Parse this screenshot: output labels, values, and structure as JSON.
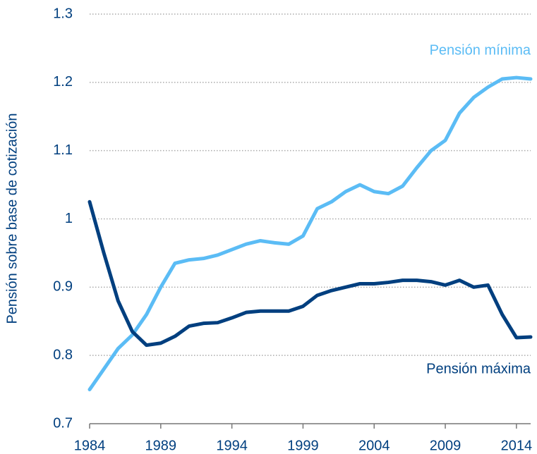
{
  "chart_data": {
    "type": "line",
    "y_label": "Pensión sobre base de cotización",
    "x": [
      1984,
      1985,
      1986,
      1987,
      1988,
      1989,
      1990,
      1991,
      1992,
      1993,
      1994,
      1995,
      1996,
      1997,
      1998,
      1999,
      2000,
      2001,
      2002,
      2003,
      2004,
      2005,
      2006,
      2007,
      2008,
      2009,
      2010,
      2011,
      2012,
      2013,
      2014,
      2015
    ],
    "series": [
      {
        "name": "Pensión mínima",
        "color": "#5bbcf5",
        "values": [
          0.75,
          0.78,
          0.81,
          0.83,
          0.86,
          0.9,
          0.935,
          0.94,
          0.942,
          0.947,
          0.955,
          0.963,
          0.968,
          0.965,
          0.963,
          0.975,
          1.015,
          1.025,
          1.04,
          1.05,
          1.04,
          1.037,
          1.048,
          1.075,
          1.1,
          1.115,
          1.155,
          1.178,
          1.193,
          1.205,
          1.207,
          1.205
        ]
      },
      {
        "name": "Pensión máxima",
        "color": "#003f7f",
        "values": [
          1.025,
          0.95,
          0.88,
          0.835,
          0.815,
          0.818,
          0.828,
          0.843,
          0.847,
          0.848,
          0.855,
          0.863,
          0.865,
          0.865,
          0.865,
          0.872,
          0.888,
          0.895,
          0.9,
          0.905,
          0.905,
          0.907,
          0.91,
          0.91,
          0.908,
          0.903,
          0.91,
          0.9,
          0.903,
          0.86,
          0.826,
          0.827
        ]
      }
    ],
    "xlim": [
      1984,
      2015
    ],
    "xticks": [
      1984,
      1989,
      1994,
      1999,
      2004,
      2009,
      2014
    ],
    "ylim": [
      0.7,
      1.3
    ],
    "yticks": [
      0.7,
      0.8,
      0.9,
      1,
      1.1,
      1.2,
      1.3
    ],
    "grid": true
  }
}
